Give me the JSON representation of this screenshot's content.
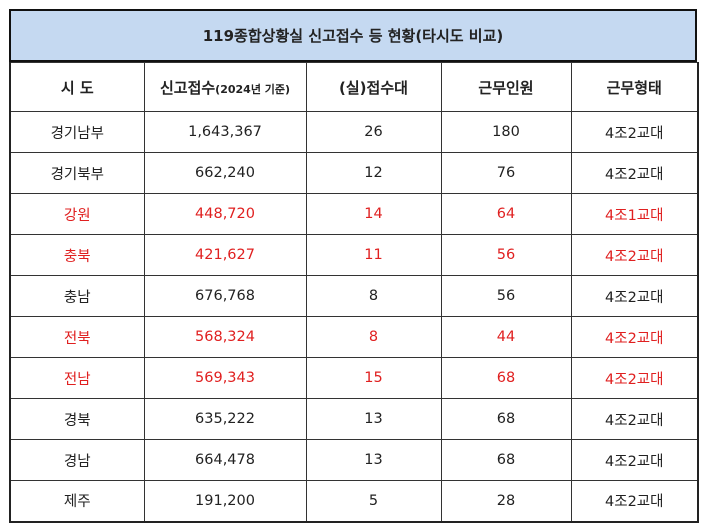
{
  "title": "119종합상황실 신고접수 등 현황(타시도 비교)",
  "headers": [
    {
      "main": "시 도",
      "sub": ""
    },
    {
      "main": "신고접수",
      "sub": "(2024년 기준)"
    },
    {
      "main": "(실)접수대",
      "sub": ""
    },
    {
      "main": "근무인원",
      "sub": ""
    },
    {
      "main": "근무형태",
      "sub": ""
    }
  ],
  "highlight_color": "#e02020",
  "rows": [
    {
      "region": "경기남부",
      "reports": "1,643,367",
      "desks": "26",
      "staff": "180",
      "shift": "4조2교대",
      "highlight": false
    },
    {
      "region": "경기북부",
      "reports": "662,240",
      "desks": "12",
      "staff": "76",
      "shift": "4조2교대",
      "highlight": false
    },
    {
      "region": "강원",
      "reports": "448,720",
      "desks": "14",
      "staff": "64",
      "shift": "4조1교대",
      "highlight": true
    },
    {
      "region": "충북",
      "reports": "421,627",
      "desks": "11",
      "staff": "56",
      "shift": "4조2교대",
      "highlight": true
    },
    {
      "region": "충남",
      "reports": "676,768",
      "desks": "8",
      "staff": "56",
      "shift": "4조2교대",
      "highlight": false
    },
    {
      "region": "전북",
      "reports": "568,324",
      "desks": "8",
      "staff": "44",
      "shift": "4조2교대",
      "highlight": true
    },
    {
      "region": "전남",
      "reports": "569,343",
      "desks": "15",
      "staff": "68",
      "shift": "4조2교대",
      "highlight": true
    },
    {
      "region": "경북",
      "reports": "635,222",
      "desks": "13",
      "staff": "68",
      "shift": "4조2교대",
      "highlight": false
    },
    {
      "region": "경남",
      "reports": "664,478",
      "desks": "13",
      "staff": "68",
      "shift": "4조2교대",
      "highlight": false
    },
    {
      "region": "제주",
      "reports": "191,200",
      "desks": "5",
      "staff": "28",
      "shift": "4조2교대",
      "highlight": false
    }
  ]
}
